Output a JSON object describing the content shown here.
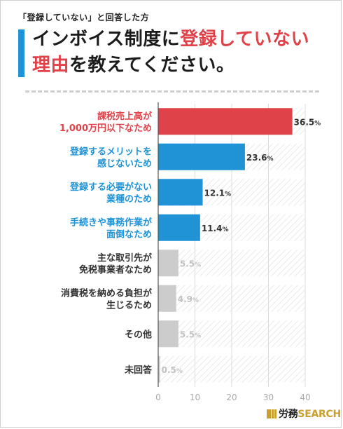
{
  "header": {
    "subtitle": "「登録していない」と回答した方",
    "title_part1": "インボイス制度に",
    "title_highlight": "登録していない",
    "title_part2": "理由",
    "title_part3": "を教えてください。"
  },
  "colors": {
    "accent_blue": "#1f93d6",
    "accent_red": "#e0424a",
    "muted_gray": "#cccccc",
    "muted_text": "#c2c2c2",
    "label_dark": "#333333",
    "logo_gold": "#c9a030"
  },
  "chart_data": {
    "type": "bar",
    "orientation": "horizontal",
    "categories": [
      [
        "課税売上高が",
        "1,000万円以下なため"
      ],
      [
        "登録するメリットを",
        "感じないため"
      ],
      [
        "登録する必要がない",
        "業種のため"
      ],
      [
        "手続きや事務作業が",
        "面倒なため"
      ],
      [
        "主な取引先が",
        "免税事業者なため"
      ],
      [
        "消費税を納める負担が",
        "生じるため"
      ],
      [
        "その他"
      ],
      [
        "未回答"
      ]
    ],
    "values": [
      36.5,
      23.6,
      12.1,
      11.4,
      5.5,
      4.9,
      5.5,
      0.5
    ],
    "value_labels": [
      "36.5%",
      "23.6%",
      "12.1%",
      "11.4%",
      "5.5%",
      "4.9%",
      "5.5%",
      "0.5%"
    ],
    "bar_colors": [
      "#e0424a",
      "#1f93d6",
      "#1f93d6",
      "#1f93d6",
      "#cccccc",
      "#cccccc",
      "#cccccc",
      "#cccccc"
    ],
    "label_colors": [
      "#e0424a",
      "#1f93d6",
      "#1f93d6",
      "#1f93d6",
      "#333333",
      "#333333",
      "#333333",
      "#333333"
    ],
    "value_label_colors": [
      "#333333",
      "#333333",
      "#333333",
      "#333333",
      "#c2c2c2",
      "#c2c2c2",
      "#c2c2c2",
      "#c2c2c2"
    ],
    "xticks": [
      0,
      10,
      20,
      30,
      40
    ],
    "xlim": [
      0,
      40
    ],
    "grid": true,
    "title": "",
    "xlabel": "",
    "ylabel": ""
  },
  "logo": {
    "brand": "労務",
    "search": "SEARCH"
  }
}
